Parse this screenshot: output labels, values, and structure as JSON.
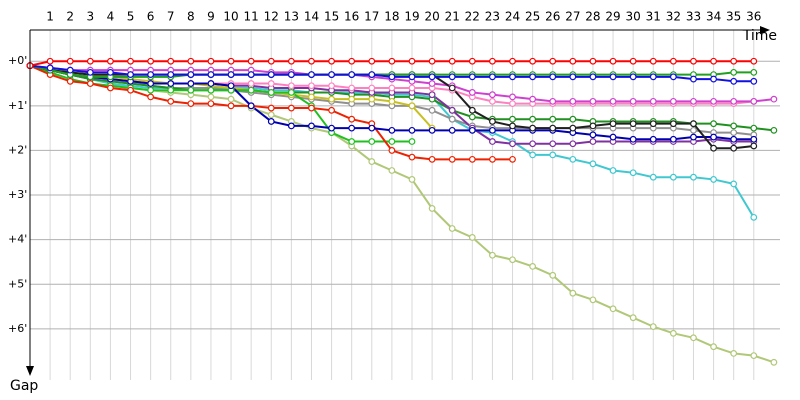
{
  "chart_data": {
    "type": "line",
    "x_label": "Time",
    "y_label": "Gap",
    "x": [
      0,
      1,
      2,
      3,
      4,
      5,
      6,
      7,
      8,
      9,
      10,
      11,
      12,
      13,
      14,
      15,
      16,
      17,
      18,
      19,
      20,
      21,
      22,
      23,
      24,
      25,
      26,
      27,
      28,
      29,
      30,
      31,
      32,
      33,
      34,
      35,
      36,
      37
    ],
    "xlim": [
      0,
      38
    ],
    "xticks": [
      1,
      2,
      3,
      4,
      5,
      6,
      7,
      8,
      9,
      10,
      11,
      12,
      13,
      14,
      15,
      16,
      17,
      18,
      19,
      20,
      21,
      22,
      23,
      24,
      25,
      26,
      27,
      28,
      29,
      30,
      31,
      32,
      33,
      34,
      35,
      36
    ],
    "ylim": [
      -0.7,
      6.9
    ],
    "yticks": [
      {
        "value": 0,
        "label": "+0'"
      },
      {
        "value": 1,
        "label": "+1'"
      },
      {
        "value": 2,
        "label": "+2'"
      },
      {
        "value": 3,
        "label": "+3'"
      },
      {
        "value": 4,
        "label": "+4'"
      },
      {
        "value": 5,
        "label": "+5'"
      },
      {
        "value": 6,
        "label": "+6'"
      }
    ],
    "grid": true,
    "series": [
      {
        "color": "#b0c878",
        "values": [
          0.1,
          0.2,
          0.3,
          0.4,
          0.5,
          0.6,
          0.65,
          0.7,
          0.75,
          0.8,
          0.85,
          1.05,
          1.2,
          1.35,
          1.5,
          1.6,
          1.9,
          2.25,
          2.45,
          2.65,
          3.3,
          3.75,
          3.95,
          4.35,
          4.45,
          4.6,
          4.8,
          5.2,
          5.35,
          5.55,
          5.75,
          5.95,
          6.1,
          6.2,
          6.4,
          6.55,
          6.6,
          6.75
        ]
      },
      {
        "color": "#40c8d0",
        "values": [
          0.1,
          0.2,
          0.3,
          0.4,
          0.5,
          0.55,
          0.6,
          0.6,
          0.6,
          0.6,
          0.6,
          0.6,
          0.65,
          0.65,
          0.7,
          0.7,
          0.7,
          0.7,
          0.75,
          0.75,
          0.8,
          1.3,
          1.55,
          1.6,
          1.8,
          2.1,
          2.1,
          2.2,
          2.3,
          2.45,
          2.5,
          2.6,
          2.6,
          2.6,
          2.65,
          2.75,
          3.5,
          null
        ]
      },
      {
        "color": "#909090",
        "values": [
          0.1,
          0.2,
          0.3,
          0.4,
          0.45,
          0.5,
          0.55,
          0.6,
          0.6,
          0.6,
          0.65,
          0.7,
          0.75,
          0.8,
          0.85,
          0.9,
          0.95,
          0.95,
          1.0,
          1.0,
          1.1,
          1.3,
          1.45,
          1.5,
          1.5,
          1.5,
          1.5,
          1.5,
          1.5,
          1.5,
          1.5,
          1.5,
          1.5,
          1.55,
          1.6,
          1.6,
          1.65,
          null
        ]
      },
      {
        "color": "#209020",
        "values": [
          0.1,
          0.2,
          0.3,
          0.4,
          0.45,
          0.5,
          0.55,
          0.6,
          0.65,
          0.65,
          0.65,
          0.65,
          0.7,
          0.7,
          0.7,
          0.7,
          0.75,
          0.75,
          0.8,
          0.8,
          0.85,
          1.1,
          1.25,
          1.3,
          1.3,
          1.3,
          1.3,
          1.3,
          1.35,
          1.35,
          1.35,
          1.35,
          1.35,
          1.4,
          1.4,
          1.45,
          1.5,
          1.55
        ]
      },
      {
        "color": "#c8c020",
        "values": [
          0.1,
          0.2,
          0.25,
          0.3,
          0.35,
          0.4,
          0.45,
          0.5,
          0.5,
          0.55,
          0.6,
          0.65,
          0.7,
          0.75,
          0.8,
          0.85,
          0.85,
          0.85,
          0.9,
          1.0,
          1.5,
          null,
          null,
          null,
          null,
          null,
          null,
          null,
          null,
          null,
          null,
          null,
          null,
          null,
          null,
          null,
          null,
          null
        ]
      },
      {
        "color": "#8030a0",
        "values": [
          0.1,
          0.2,
          0.3,
          0.35,
          0.4,
          0.45,
          0.5,
          0.5,
          0.5,
          0.5,
          0.55,
          0.55,
          0.6,
          0.6,
          0.6,
          0.65,
          0.65,
          0.7,
          0.7,
          0.7,
          0.75,
          1.1,
          1.5,
          1.8,
          1.85,
          1.85,
          1.85,
          1.85,
          1.8,
          1.8,
          1.8,
          1.8,
          1.8,
          1.8,
          1.75,
          1.8,
          1.8,
          null
        ]
      },
      {
        "color": "#ff80c0",
        "values": [
          0.1,
          0.2,
          0.3,
          0.35,
          0.4,
          0.45,
          0.5,
          0.5,
          0.5,
          0.5,
          0.5,
          0.5,
          0.5,
          0.55,
          0.55,
          0.55,
          0.6,
          0.6,
          0.6,
          0.6,
          0.6,
          0.65,
          0.8,
          0.9,
          0.95,
          0.95,
          0.95,
          0.95,
          0.95,
          0.95,
          0.95,
          0.95,
          0.95,
          0.95,
          0.95,
          0.95,
          0.9,
          null
        ]
      },
      {
        "color": "#d040d0",
        "values": [
          0.1,
          0.15,
          0.2,
          0.2,
          0.2,
          0.2,
          0.2,
          0.2,
          0.2,
          0.2,
          0.2,
          0.2,
          0.25,
          0.25,
          0.3,
          0.3,
          0.3,
          0.35,
          0.4,
          0.45,
          0.5,
          0.55,
          0.7,
          0.75,
          0.8,
          0.85,
          0.9,
          0.9,
          0.9,
          0.9,
          0.9,
          0.9,
          0.9,
          0.9,
          0.9,
          0.9,
          0.9,
          0.85
        ]
      },
      {
        "color": "#20c020",
        "values": [
          0.1,
          0.25,
          0.4,
          0.5,
          0.55,
          0.6,
          0.65,
          0.65,
          0.65,
          0.65,
          0.65,
          0.65,
          0.7,
          0.7,
          1.0,
          1.6,
          1.8,
          1.8,
          1.8,
          1.8,
          null,
          null,
          null,
          null,
          null,
          null,
          null,
          null,
          null,
          null,
          null,
          null,
          null,
          null,
          null,
          null,
          null,
          null
        ]
      },
      {
        "color": "#ee2200",
        "values": [
          0.1,
          0.3,
          0.45,
          0.5,
          0.6,
          0.65,
          0.8,
          0.9,
          0.95,
          0.95,
          1.0,
          1.0,
          1.05,
          1.05,
          1.05,
          1.1,
          1.3,
          1.4,
          2.0,
          2.15,
          2.2,
          2.2,
          2.2,
          2.2,
          2.2,
          null,
          null,
          null,
          null,
          null,
          null,
          null,
          null,
          null,
          null,
          null,
          null,
          null
        ]
      },
      {
        "color": "#0000b0",
        "values": [
          0.1,
          0.2,
          0.3,
          0.35,
          0.4,
          0.45,
          0.5,
          0.5,
          0.5,
          0.5,
          0.55,
          1.0,
          1.35,
          1.45,
          1.45,
          1.5,
          1.5,
          1.5,
          1.55,
          1.55,
          1.55,
          1.55,
          1.55,
          1.55,
          1.55,
          1.55,
          1.55,
          1.6,
          1.65,
          1.7,
          1.75,
          1.75,
          1.75,
          1.7,
          1.7,
          1.75,
          1.75,
          null
        ]
      },
      {
        "color": "#202020",
        "values": [
          0.1,
          0.2,
          0.25,
          0.3,
          0.3,
          0.3,
          0.3,
          0.3,
          0.3,
          0.3,
          0.3,
          0.3,
          0.3,
          0.3,
          0.3,
          0.3,
          0.3,
          0.3,
          0.3,
          0.3,
          0.3,
          0.6,
          1.1,
          1.35,
          1.45,
          1.5,
          1.5,
          1.5,
          1.45,
          1.4,
          1.4,
          1.4,
          1.4,
          1.4,
          1.95,
          1.95,
          1.9,
          null
        ]
      },
      {
        "color": "#20a020",
        "values": [
          0.1,
          0.2,
          0.3,
          0.35,
          0.35,
          0.35,
          0.35,
          0.35,
          0.3,
          0.3,
          0.3,
          0.3,
          0.3,
          0.3,
          0.3,
          0.3,
          0.3,
          0.3,
          0.3,
          0.3,
          0.3,
          0.3,
          0.3,
          0.3,
          0.3,
          0.3,
          0.3,
          0.3,
          0.3,
          0.3,
          0.3,
          0.3,
          0.3,
          0.3,
          0.3,
          0.25,
          0.25,
          null
        ]
      },
      {
        "color": "#1010e0",
        "values": [
          0.1,
          0.15,
          0.2,
          0.25,
          0.25,
          0.3,
          0.3,
          0.3,
          0.3,
          0.3,
          0.3,
          0.3,
          0.3,
          0.3,
          0.3,
          0.3,
          0.3,
          0.3,
          0.35,
          0.35,
          0.35,
          0.35,
          0.35,
          0.35,
          0.35,
          0.35,
          0.35,
          0.35,
          0.35,
          0.35,
          0.35,
          0.35,
          0.35,
          0.4,
          0.4,
          0.45,
          0.45,
          null
        ]
      },
      {
        "color": "#ff0000",
        "values": [
          0.1,
          0,
          0,
          0,
          0,
          0,
          0,
          0,
          0,
          0,
          0,
          0,
          0,
          0,
          0,
          0,
          0,
          0,
          0,
          0,
          0,
          0,
          0,
          0,
          0,
          0,
          0,
          0,
          0,
          0,
          0,
          0,
          0,
          0,
          0,
          0,
          0,
          null
        ]
      }
    ]
  }
}
